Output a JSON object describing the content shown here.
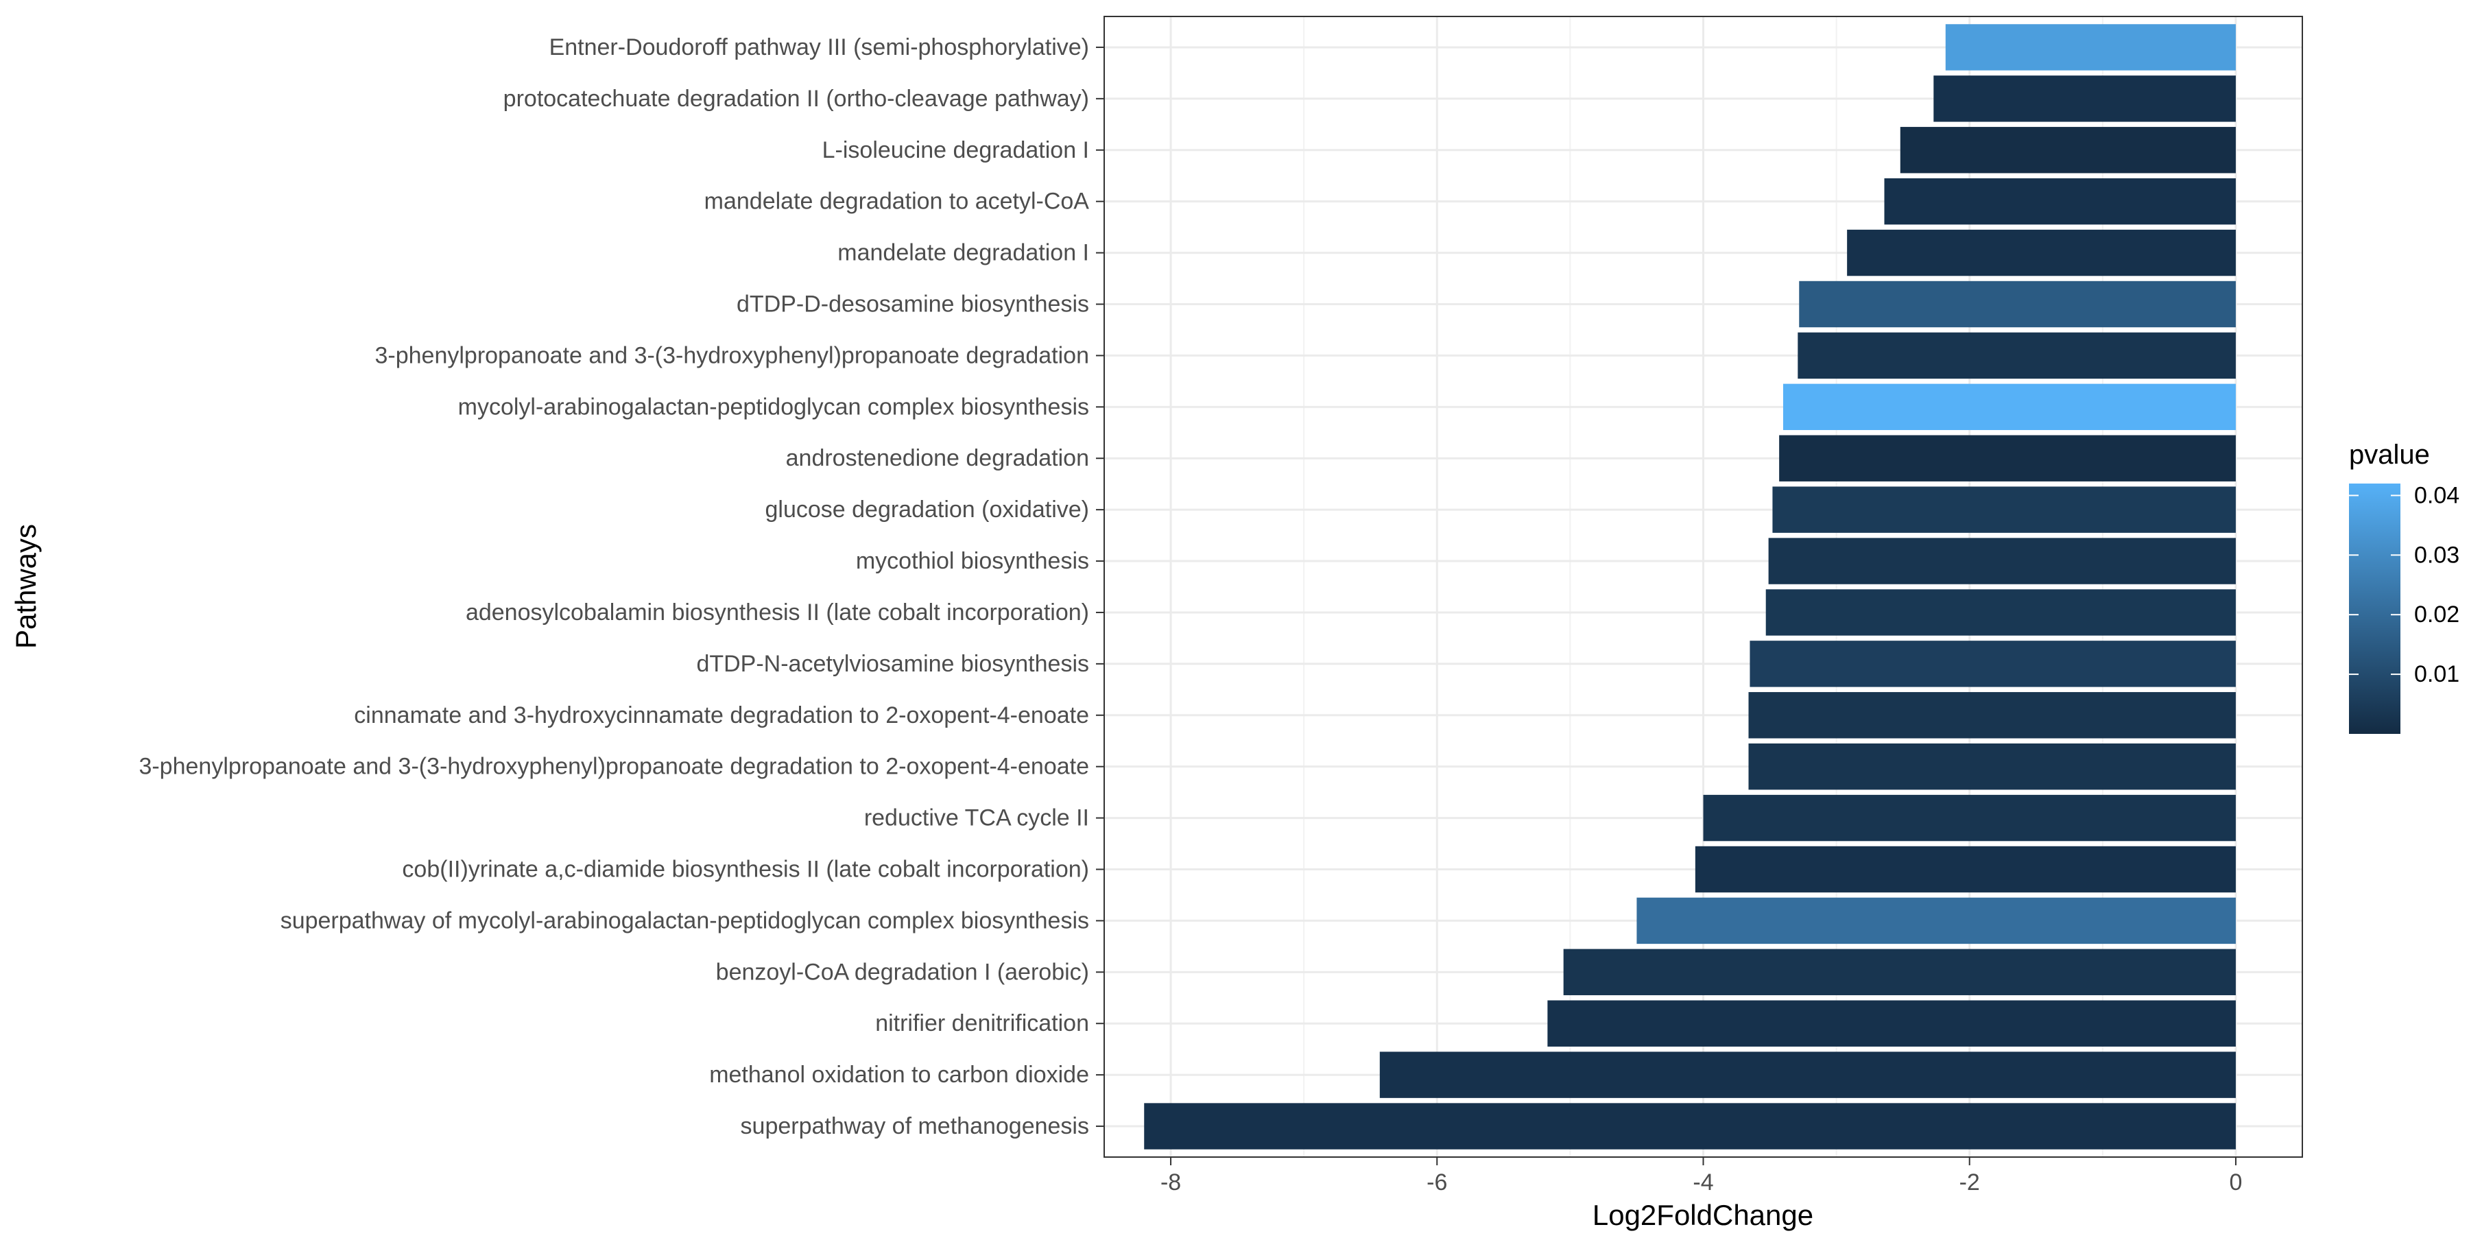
{
  "chart_data": {
    "type": "bar",
    "orientation": "horizontal",
    "xlabel": "Log2FoldChange",
    "ylabel": "Pathways",
    "xlim": [
      -8.5,
      0.5
    ],
    "x_ticks": [
      -8,
      -6,
      -4,
      -2,
      0
    ],
    "grid": true,
    "legend": {
      "title": "pvalue",
      "placement": "right",
      "type": "gradient",
      "range": [
        0.0,
        0.042
      ],
      "ticks": [
        0.01,
        0.02,
        0.03,
        0.04
      ],
      "tick_labels": [
        "0.01",
        "0.02",
        "0.03",
        "0.04"
      ],
      "low_color": "#132b43",
      "high_color": "#56b1f7"
    },
    "categories": [
      "Entner-Doudoroff pathway III (semi-phosphorylative)",
      "protocatechuate degradation II (ortho-cleavage pathway)",
      "L-isoleucine degradation I",
      "mandelate degradation to acetyl-CoA",
      "mandelate degradation I",
      "dTDP-D-desosamine biosynthesis",
      "3-phenylpropanoate and 3-(3-hydroxyphenyl)propanoate degradation",
      "mycolyl-arabinogalactan-peptidoglycan complex biosynthesis",
      "androstenedione degradation",
      "glucose degradation (oxidative)",
      "mycothiol biosynthesis",
      "adenosylcobalamin biosynthesis II (late cobalt incorporation)",
      "dTDP-N-acetylviosamine biosynthesis",
      "cinnamate and 3-hydroxycinnamate degradation to 2-oxopent-4-enoate",
      "3-phenylpropanoate and 3-(3-hydroxyphenyl)propanoate degradation to 2-oxopent-4-enoate",
      "reductive TCA cycle II",
      "cob(II)yrinate a,c-diamide biosynthesis II (late cobalt incorporation)",
      "superpathway of mycolyl-arabinogalactan-peptidoglycan complex biosynthesis",
      "benzoyl-CoA degradation I (aerobic)",
      "nitrifier denitrification",
      "methanol oxidation to carbon dioxide",
      "superpathway of methanogenesis"
    ],
    "values": [
      -2.18,
      -2.27,
      -2.52,
      -2.64,
      -2.92,
      -3.28,
      -3.29,
      -3.4,
      -3.43,
      -3.48,
      -3.51,
      -3.53,
      -3.65,
      -3.66,
      -3.66,
      -4.0,
      -4.06,
      -4.5,
      -5.05,
      -5.17,
      -6.43,
      -8.2
    ],
    "pvalues": [
      0.036,
      0.002,
      0.001,
      0.002,
      0.002,
      0.015,
      0.003,
      0.042,
      0.001,
      0.005,
      0.003,
      0.004,
      0.006,
      0.003,
      0.003,
      0.003,
      0.002,
      0.021,
      0.003,
      0.002,
      0.002,
      0.002
    ]
  }
}
